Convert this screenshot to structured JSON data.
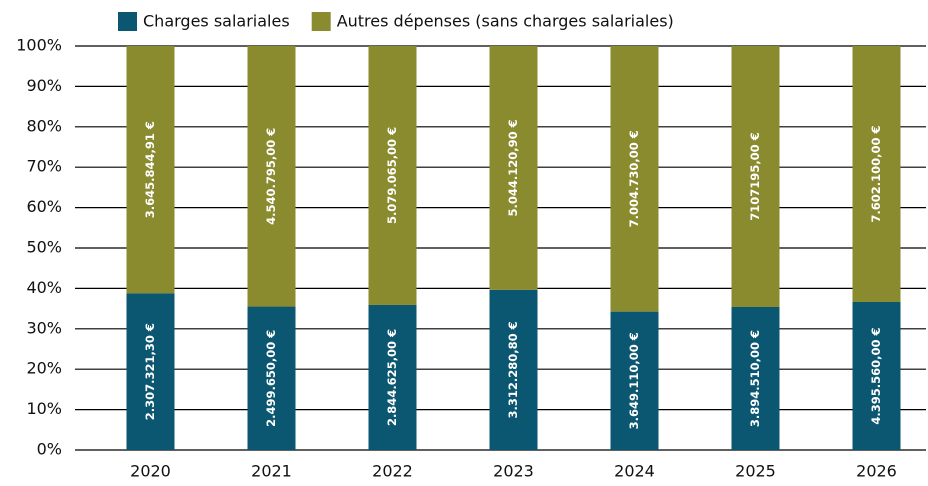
{
  "chart_data": {
    "type": "bar",
    "stack": "percent",
    "categories": [
      "2020",
      "2021",
      "2022",
      "2023",
      "2024",
      "2025",
      "2026"
    ],
    "series": [
      {
        "name": "Charges salariales",
        "color": "#0b5670",
        "values": [
          2307321.3,
          2499650.0,
          2844625.0,
          3312280.8,
          3649110.0,
          3894510.0,
          4395560.0
        ],
        "value_labels": [
          "2.307.321,30 €",
          "2.499.650,00 €",
          "2.844.625,00 €",
          "3.312.280,80 €",
          "3.649.110,00 €",
          "3.894.510,00 €",
          "4.395.560,00 €"
        ]
      },
      {
        "name": "Autres dépenses (sans charges salariales)",
        "color": "#8a8a2e",
        "values": [
          3645844.91,
          4540795.0,
          5079065.0,
          5044120.9,
          7004730.0,
          7107195.0,
          7602100.0
        ],
        "value_labels": [
          "3.645.844,91 €",
          "4.540.795,00 €",
          "5.079.065,00 €",
          "5.044.120,90 €",
          "7.004.730,00 €",
          "7107195,00 €",
          "7.602.100,00 €"
        ]
      }
    ],
    "ylim": [
      0,
      100
    ],
    "yticks": [
      {
        "value": 0,
        "label": "0%"
      },
      {
        "value": 10,
        "label": "10%"
      },
      {
        "value": 20,
        "label": "20%"
      },
      {
        "value": 30,
        "label": "30%"
      },
      {
        "value": 40,
        "label": "40%"
      },
      {
        "value": 50,
        "label": "50%"
      },
      {
        "value": 60,
        "label": "60%"
      },
      {
        "value": 70,
        "label": "70%"
      },
      {
        "value": 80,
        "label": "80%"
      },
      {
        "value": 90,
        "label": "90%"
      },
      {
        "value": 100,
        "label": "100%"
      }
    ],
    "grid": true
  }
}
